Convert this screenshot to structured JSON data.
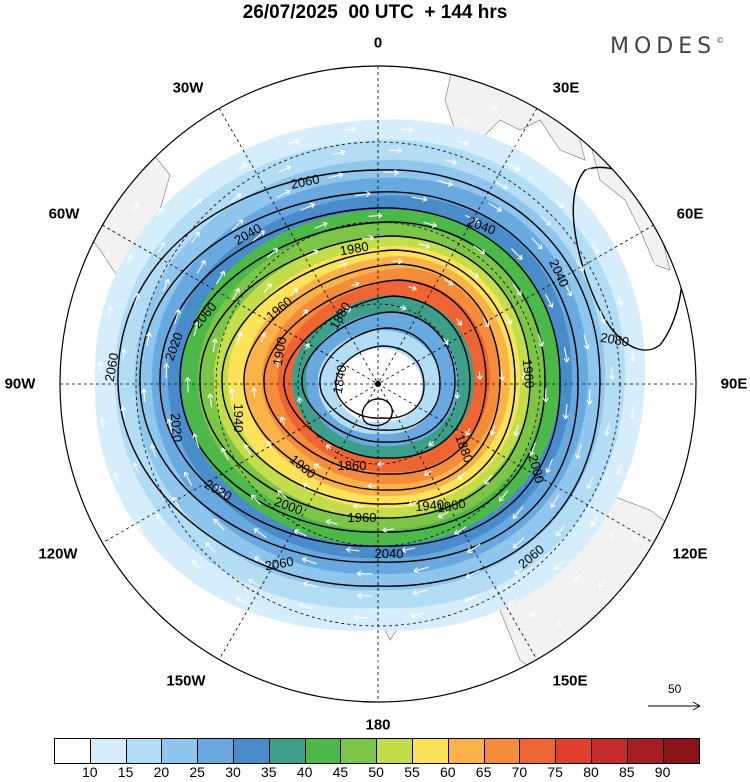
{
  "title": "26/07/2025  00 UTC  + 144 hrs",
  "brand": "MODES",
  "brand_mark": "©",
  "longitude_labels": {
    "lon_0": "0",
    "lon_30e": "30E",
    "lon_60e": "60E",
    "lon_90e": "90E",
    "lon_120e": "120E",
    "lon_150e": "150E",
    "lon_180": "180",
    "lon_150w": "150W",
    "lon_120w": "120W",
    "lon_90w": "90W",
    "lon_60w": "60W",
    "lon_30w": "30W"
  },
  "reference_vector_label": "50",
  "contour_labels": [
    "2060",
    "2040",
    "2040",
    "2060",
    "1960",
    "1980",
    "2040",
    "2080",
    "1880",
    "1840",
    "1900",
    "2020",
    "1960",
    "2060",
    "1940",
    "1960",
    "2000",
    "1860",
    "1880",
    "1900",
    "2020",
    "2020",
    "1940",
    "2000",
    "1960",
    "2040",
    "2060",
    "2060"
  ],
  "colorbar": {
    "colors": [
      "#ffffff",
      "#d6eefb",
      "#b3dcf5",
      "#8fc6ee",
      "#6aa9df",
      "#4a8ccb",
      "#3d9e8a",
      "#4db84a",
      "#7cc547",
      "#c4dd4c",
      "#fde35a",
      "#fbb349",
      "#f58c3c",
      "#ee6432",
      "#e0402b",
      "#c52a2a",
      "#a81c24",
      "#8b1318"
    ],
    "ticks": [
      "10",
      "15",
      "20",
      "25",
      "30",
      "35",
      "40",
      "45",
      "50",
      "55",
      "60",
      "65",
      "70",
      "75",
      "80",
      "85",
      "90"
    ]
  },
  "colors": {
    "land": "#f2f2f2",
    "contour": "#000000",
    "wind_arrow": "#ffffff"
  }
}
